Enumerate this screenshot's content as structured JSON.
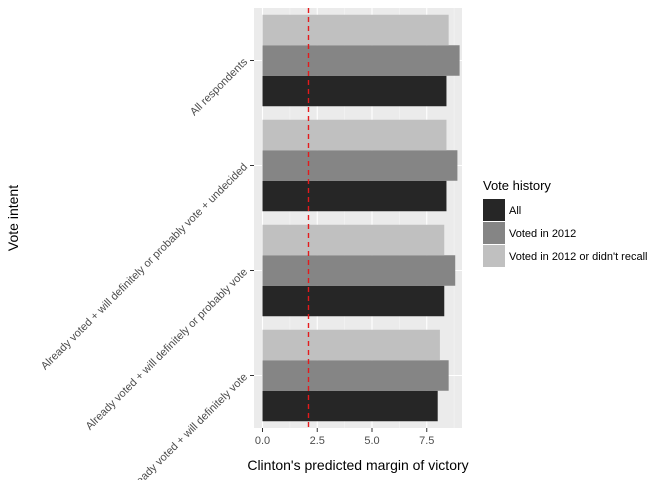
{
  "chart_data": {
    "type": "bar",
    "orientation": "horizontal",
    "categories": [
      "All respondents",
      "Already voted + will definitely or probably vote + undecided",
      "Already voted + will definitely or probably vote",
      "Already voted + will definitely vote"
    ],
    "series": [
      {
        "name": "All",
        "color": "#262626",
        "values": [
          8.4,
          8.4,
          8.3,
          8.0
        ]
      },
      {
        "name": "Voted in 2012",
        "color": "#858585",
        "values": [
          9.0,
          8.9,
          8.8,
          8.5
        ]
      },
      {
        "name": "Voted in 2012 or didn't recall",
        "color": "#c0c0c0",
        "values": [
          8.5,
          8.4,
          8.3,
          8.1
        ]
      }
    ],
    "reference_line": {
      "value": 2.1,
      "color": "#e41a1c",
      "style": "dashed"
    },
    "xlabel": "Clinton's predicted margin of victory",
    "ylabel": "Vote intent",
    "xlim": [
      -0.5,
      9.4
    ],
    "xticks": [
      0.0,
      2.5,
      5.0,
      7.5
    ],
    "xtick_labels": [
      "0.0",
      "2.5",
      "5.0",
      "7.5"
    ],
    "legend_title": "Vote history",
    "legend_position": "right",
    "grid": true,
    "panel_background": "#ebebeb"
  }
}
